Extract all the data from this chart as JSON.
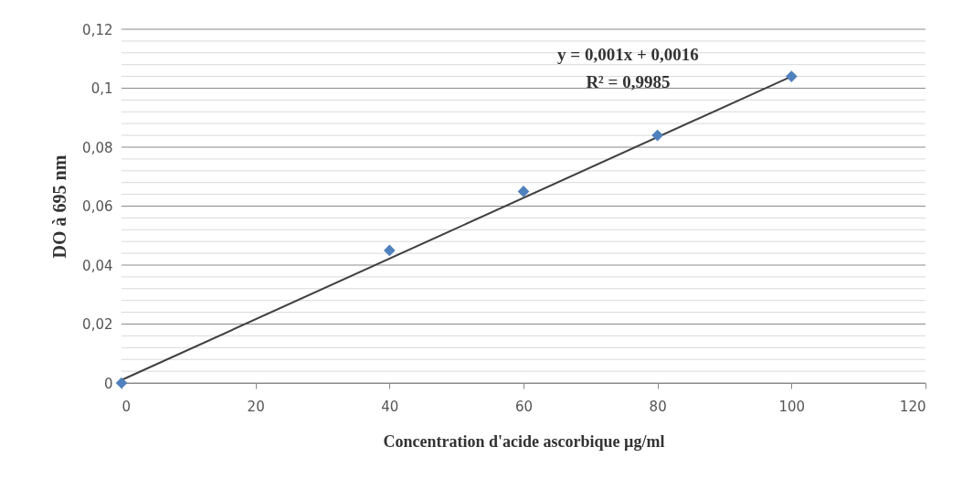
{
  "chart_data": {
    "type": "scatter",
    "xlabel": "Concentration d'acide ascorbique µg/ml",
    "ylabel": "DO à 695 nm",
    "annotations": [
      "y = 0,001x + 0,0016",
      "R² = 0,9985"
    ],
    "xlim": [
      0,
      120
    ],
    "xticks": [
      0,
      20,
      40,
      60,
      80,
      100,
      120
    ],
    "ylim": [
      0,
      0.12
    ],
    "yticks": [
      0,
      {
        "value": 0.004,
        "label": null
      },
      {
        "value": 0.008,
        "label": null
      },
      {
        "value": 0.012,
        "label": null
      },
      {
        "value": 0.016,
        "label": null
      },
      {
        "value": 0.02,
        "label": "0,02"
      },
      {
        "value": 0.024,
        "label": null
      },
      {
        "value": 0.028,
        "label": null
      },
      {
        "value": 0.032,
        "label": null
      },
      {
        "value": 0.036,
        "label": null
      },
      {
        "value": 0.04,
        "label": "0,04"
      },
      {
        "value": 0.044,
        "label": null
      },
      {
        "value": 0.048,
        "label": null
      },
      {
        "value": 0.052,
        "label": null
      },
      {
        "value": 0.056,
        "label": null
      },
      {
        "value": 0.06,
        "label": "0,06"
      },
      {
        "value": 0.064,
        "label": null
      },
      {
        "value": 0.068,
        "label": null
      },
      {
        "value": 0.072,
        "label": null
      },
      {
        "value": 0.076,
        "label": null
      },
      {
        "value": 0.08,
        "label": "0,08"
      },
      {
        "value": 0.084,
        "label": null
      },
      {
        "value": 0.088,
        "label": null
      },
      {
        "value": 0.092,
        "label": null
      },
      {
        "value": 0.096,
        "label": null
      },
      {
        "value": 0.1,
        "label": "0,1"
      },
      {
        "value": 0.104,
        "label": null
      },
      {
        "value": 0.108,
        "label": null
      },
      {
        "value": 0.112,
        "label": null
      },
      {
        "value": 0.116,
        "label": null
      },
      {
        "value": 0.12,
        "label": "0,12"
      }
    ],
    "grid": "y",
    "marker": "diamond",
    "series": [
      {
        "type": "line",
        "marker": "none",
        "color": "#404040",
        "x": [
          0,
          100
        ],
        "values": [
          0.001,
          0.104
        ]
      },
      {
        "color": "#4f81bd",
        "x": [
          0,
          40,
          60,
          80,
          100
        ],
        "values": [
          0,
          0.045,
          0.065,
          0.084,
          0.104
        ]
      }
    ]
  }
}
